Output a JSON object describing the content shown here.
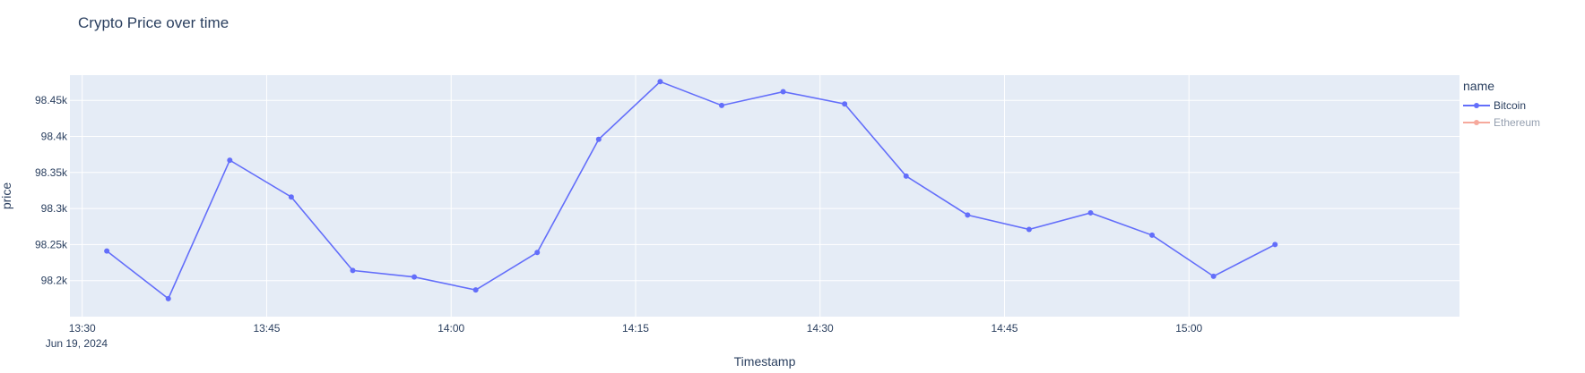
{
  "chart_data": {
    "type": "line",
    "title": "Crypto Price over time",
    "xlabel": "Timestamp",
    "ylabel": "price",
    "legend_title": "name",
    "legend_placement": "right",
    "grid": true,
    "date_label": "Jun 19, 2024",
    "x_ticks": [
      "13:30",
      "13:45",
      "14:00",
      "14:15",
      "14:30",
      "14:45",
      "15:00"
    ],
    "xlim": [
      "13:29",
      "15:22"
    ],
    "ylim": [
      98150,
      98485
    ],
    "y_ticks": [
      98200,
      98250,
      98300,
      98350,
      98400,
      98450
    ],
    "y_tick_labels": [
      "98.2k",
      "98.25k",
      "98.3k",
      "98.35k",
      "98.4k",
      "98.45k"
    ],
    "series": [
      {
        "name": "Bitcoin",
        "color": "#636efa",
        "visible": true,
        "x": [
          "13:32",
          "13:37",
          "13:42",
          "13:47",
          "13:52",
          "13:57",
          "14:02",
          "14:07",
          "14:12",
          "14:17",
          "14:22",
          "14:27",
          "14:32",
          "14:37",
          "14:42",
          "14:47",
          "14:52",
          "14:57",
          "15:02",
          "15:07"
        ],
        "values": [
          98241,
          98175,
          98367,
          98316,
          98214,
          98205,
          98187,
          98239,
          98396,
          98476,
          98443,
          98462,
          98445,
          98345,
          98291,
          98271,
          98294,
          98263,
          98206,
          98250
        ]
      },
      {
        "name": "Ethereum",
        "color": "#ef553b",
        "visible": false,
        "x": [],
        "values": []
      }
    ]
  }
}
